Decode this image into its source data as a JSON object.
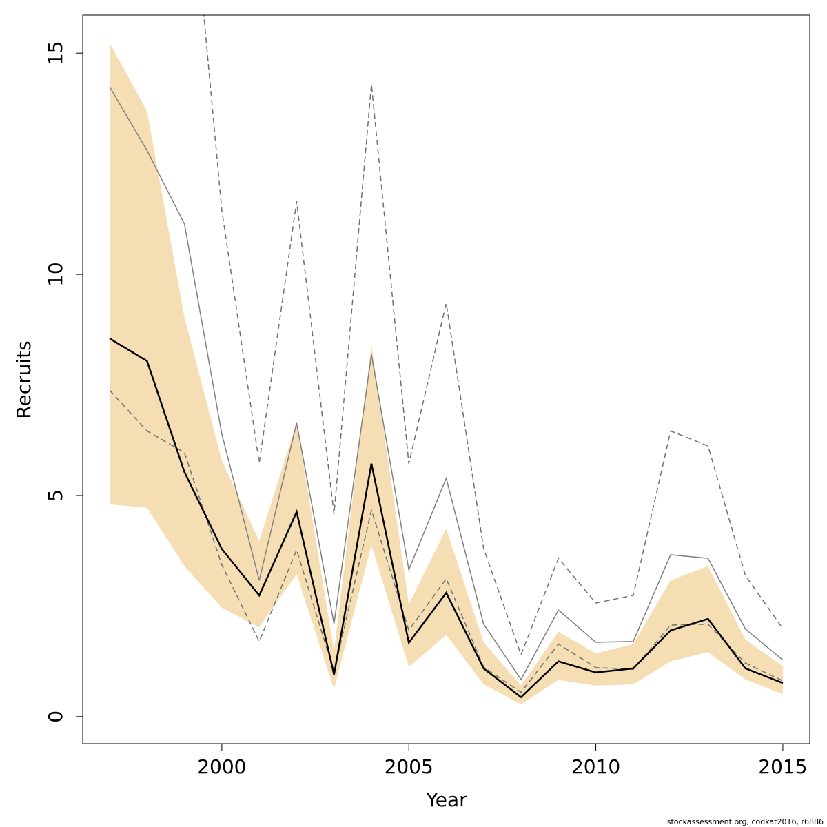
{
  "chart_data": {
    "type": "line",
    "xlabel": "Year",
    "ylabel": "Recruits",
    "footnote": "stockassessment.org, codkat2016, r6886",
    "x": [
      1997,
      1998,
      1999,
      2000,
      2001,
      2002,
      2003,
      2004,
      2005,
      2006,
      2007,
      2008,
      2009,
      2010,
      2011,
      2012,
      2013,
      2014,
      2015
    ],
    "band": {
      "color": "#f5deb3",
      "upper": [
        15.23,
        13.69,
        9.03,
        5.79,
        3.97,
        6.65,
        1.48,
        8.41,
        2.54,
        4.25,
        1.68,
        0.7,
        1.92,
        1.43,
        1.64,
        3.08,
        3.4,
        1.74,
        1.14
      ],
      "lower": [
        4.8,
        4.72,
        3.4,
        2.46,
        2.02,
        3.22,
        0.62,
        3.88,
        1.12,
        1.85,
        0.73,
        0.28,
        0.83,
        0.7,
        0.73,
        1.25,
        1.46,
        0.84,
        0.51
      ]
    },
    "series": [
      {
        "color": "#808080",
        "dash": false,
        "width": 1.5,
        "values": [
          14.24,
          12.8,
          11.14,
          6.39,
          3.08,
          6.64,
          2.1,
          8.19,
          3.32,
          5.39,
          2.09,
          0.84,
          2.41,
          1.68,
          1.7,
          3.66,
          3.58,
          1.98,
          1.28
        ]
      },
      {
        "color": "#707070",
        "dash": true,
        "width": 1.5,
        "values": [
          null,
          null,
          20.6,
          11.45,
          5.73,
          11.65,
          4.58,
          14.3,
          5.72,
          9.35,
          3.8,
          1.4,
          3.58,
          2.57,
          2.74,
          6.46,
          6.12,
          3.19,
          1.99
        ]
      },
      {
        "color": "#707070",
        "dash": true,
        "width": 1.5,
        "values": [
          7.38,
          6.46,
          5.97,
          3.43,
          1.7,
          3.77,
          1.01,
          4.67,
          1.95,
          3.12,
          1.12,
          0.55,
          1.64,
          1.11,
          1.07,
          2.07,
          2.09,
          1.21,
          0.81
        ]
      },
      {
        "color": "#000000",
        "dash": false,
        "width": 2.5,
        "values": [
          8.55,
          8.04,
          5.53,
          3.79,
          2.74,
          4.63,
          0.95,
          5.72,
          1.67,
          2.8,
          1.09,
          0.44,
          1.25,
          1.0,
          1.09,
          1.95,
          2.21,
          1.09,
          0.76
        ]
      }
    ],
    "xlim": [
      1996.28,
      2015.72
    ],
    "xticks": [
      2000,
      2005,
      2010,
      2015
    ],
    "ylim": [
      -0.61,
      15.86
    ],
    "yticks": [
      0,
      5,
      10,
      15
    ]
  }
}
